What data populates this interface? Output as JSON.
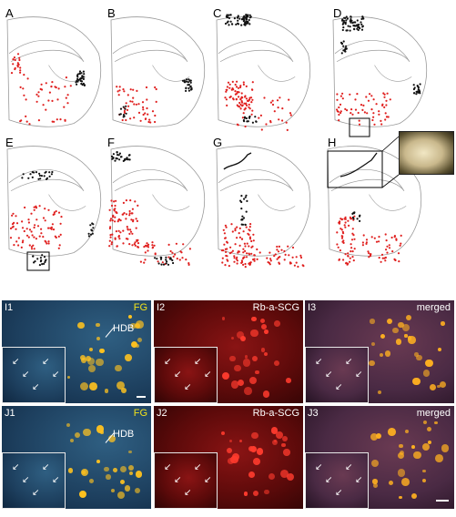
{
  "panels": {
    "A": "A",
    "B": "B",
    "C": "C",
    "D": "D",
    "E": "E",
    "F": "F",
    "G": "G",
    "H": "H"
  },
  "micrographs": [
    {
      "id": "I1",
      "label": "I1",
      "tag": "FG",
      "region": "HDB",
      "kind": "fg"
    },
    {
      "id": "I2",
      "label": "I2",
      "tag": "Rb-a-SCG",
      "region": "",
      "kind": "red"
    },
    {
      "id": "I3",
      "label": "I3",
      "tag": "merged",
      "region": "",
      "kind": "merged"
    },
    {
      "id": "J1",
      "label": "J1",
      "tag": "FG",
      "region": "HDB",
      "kind": "fg"
    },
    {
      "id": "J2",
      "label": "J2",
      "tag": "Rb-a-SCG",
      "region": "",
      "kind": "red"
    },
    {
      "id": "J3",
      "label": "J3",
      "tag": "merged",
      "region": "",
      "kind": "merged"
    }
  ],
  "colors": {
    "retrograde_red": "#e0201f",
    "anterograde_black": "#111111",
    "outline": "#9a9a9a",
    "fg_label": "#f2e21a"
  }
}
